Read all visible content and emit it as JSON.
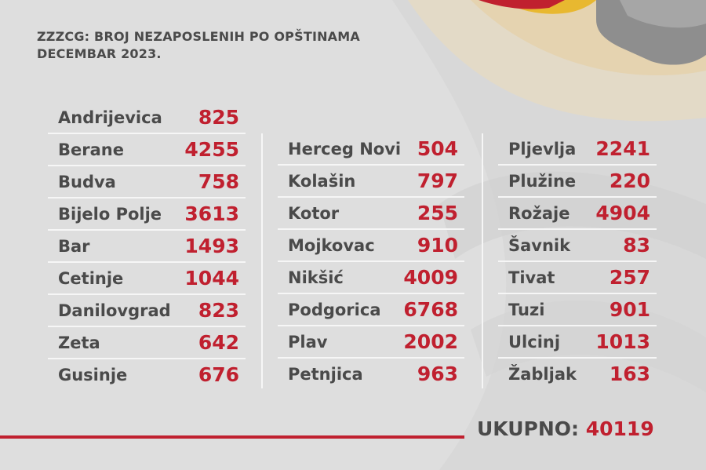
{
  "title": {
    "line1": "ZZZCG: BROJ NEZAPOSLENIH PO OPŠTINAMA",
    "line2": "DECEMBAR 2023."
  },
  "columns": [
    {
      "rows": [
        {
          "name": "Andrijevica",
          "value": "825"
        },
        {
          "name": "Berane",
          "value": "4255"
        },
        {
          "name": "Budva",
          "value": "758"
        },
        {
          "name": "Bijelo Polje",
          "value": "3613"
        },
        {
          "name": "Bar",
          "value": "1493"
        },
        {
          "name": "Cetinje",
          "value": "1044"
        },
        {
          "name": "Danilovgrad",
          "value": "823"
        },
        {
          "name": "Zeta",
          "value": "642"
        },
        {
          "name": "Gusinje",
          "value": "676"
        }
      ]
    },
    {
      "rows": [
        {
          "name": "Herceg Novi",
          "value": "504"
        },
        {
          "name": "Kolašin",
          "value": "797"
        },
        {
          "name": "Kotor",
          "value": "255"
        },
        {
          "name": "Mojkovac",
          "value": "910"
        },
        {
          "name": "Nikšić",
          "value": "4009"
        },
        {
          "name": "Podgorica",
          "value": "6768"
        },
        {
          "name": "Plav",
          "value": "2002"
        },
        {
          "name": "Petnjica",
          "value": "963"
        }
      ]
    },
    {
      "rows": [
        {
          "name": "Pljevlja",
          "value": "2241"
        },
        {
          "name": "Plužine",
          "value": "220"
        },
        {
          "name": "Rožaje",
          "value": "4904"
        },
        {
          "name": "Šavnik",
          "value": "83"
        },
        {
          "name": "Tivat",
          "value": "257"
        },
        {
          "name": "Tuzi",
          "value": "901"
        },
        {
          "name": "Ulcinj",
          "value": "1013"
        },
        {
          "name": "Žabljak",
          "value": "163"
        }
      ]
    }
  ],
  "total": {
    "label": "UKUPNO:",
    "value": "40119"
  },
  "colors": {
    "accent": "#c0202f",
    "text": "#4a4a4a",
    "background": "#dedede"
  }
}
